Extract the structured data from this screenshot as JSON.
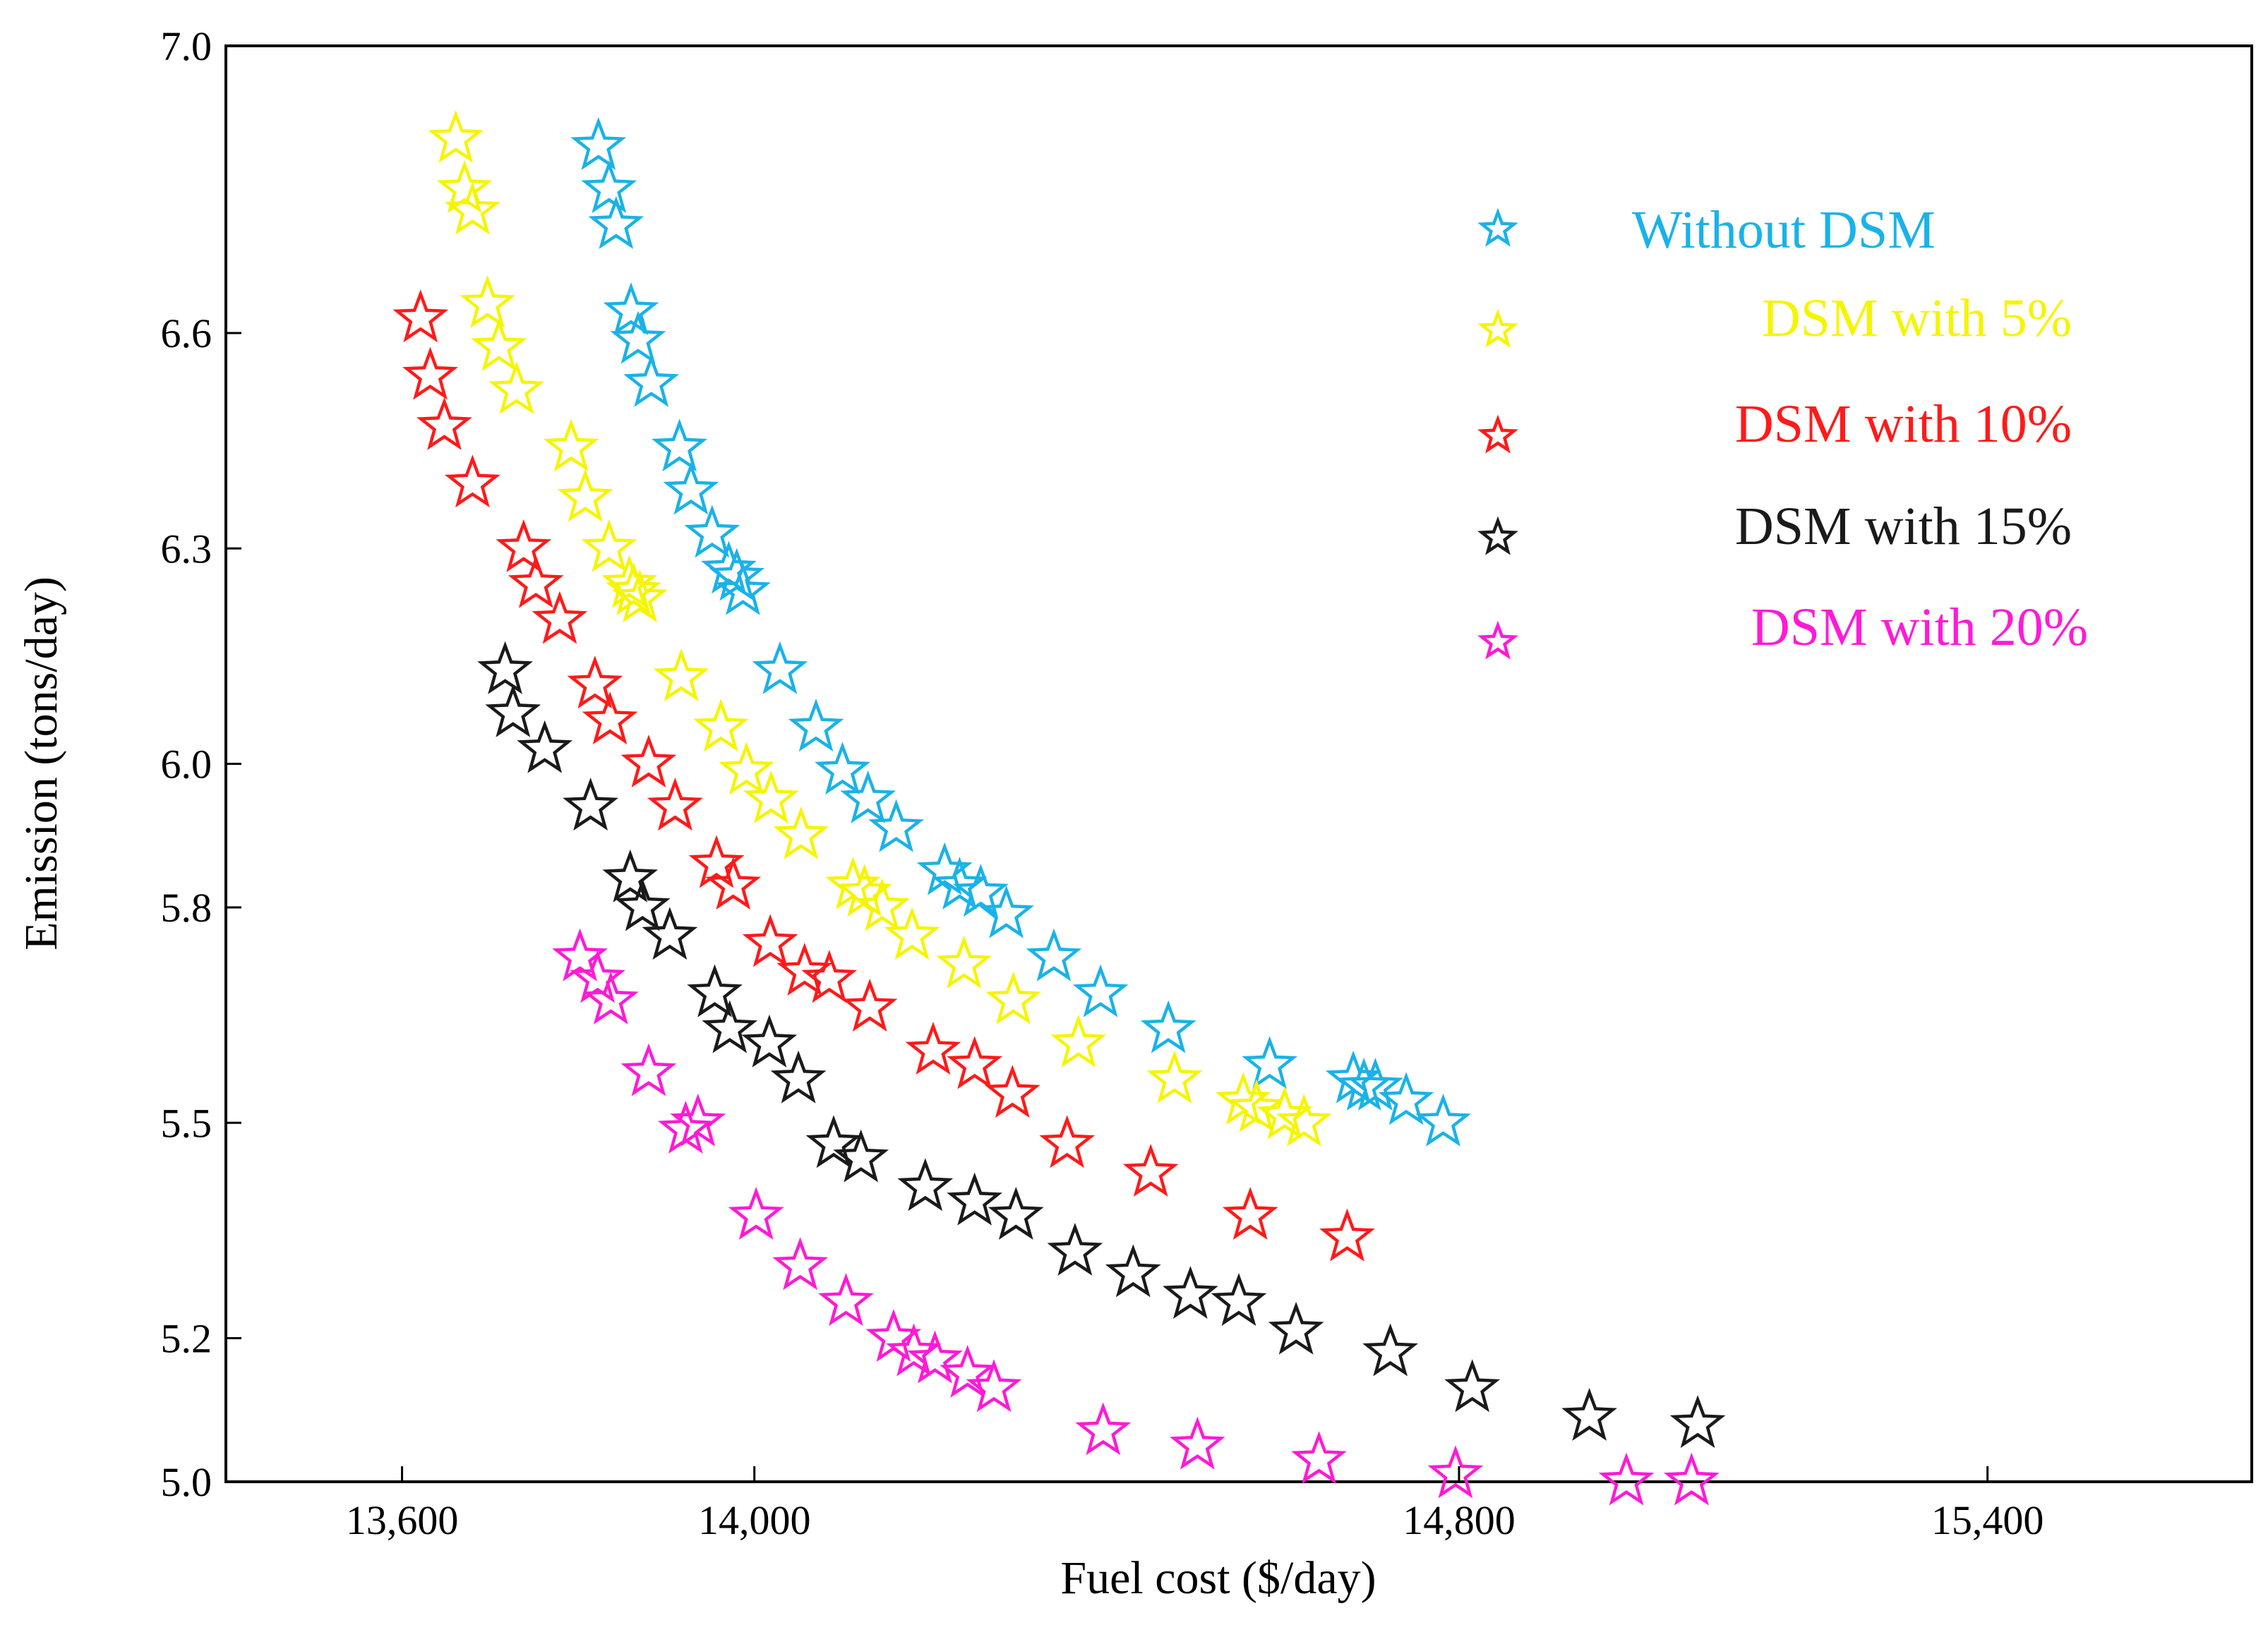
{
  "chart_data": {
    "type": "scatter",
    "xlabel": "Fuel cost ($/day)",
    "ylabel": "Emission (tons/day)",
    "xlim": [
      13400,
      15700
    ],
    "ylim": [
      5.0,
      7.0
    ],
    "x_tick_labels": [
      {
        "value": 13600,
        "label": "13,600"
      },
      {
        "value": 14000,
        "label": "14,000"
      },
      {
        "value": 14800,
        "label": "14,800"
      },
      {
        "value": 15400,
        "label": "15,400"
      }
    ],
    "y_tick_labels": [
      {
        "value": 5.0,
        "label": "5.0"
      },
      {
        "value": 5.2,
        "label": "5.2"
      },
      {
        "value": 5.5,
        "label": "5.5"
      },
      {
        "value": 5.8,
        "label": "5.8"
      },
      {
        "value": 6.0,
        "label": "6.0"
      },
      {
        "value": 6.3,
        "label": "6.3"
      },
      {
        "value": 6.6,
        "label": "6.6"
      },
      {
        "value": 7.0,
        "label": "7.0"
      }
    ],
    "legend_position": "top-right",
    "marker": "star-icon",
    "series": [
      {
        "name": "Without DSM",
        "color": "#1ab2e8",
        "points": [
          [
            13823,
            6.86
          ],
          [
            13835,
            6.8
          ],
          [
            13843,
            6.75
          ],
          [
            13860,
            6.63
          ],
          [
            13868,
            6.59
          ],
          [
            13883,
            6.53
          ],
          [
            13915,
            6.44
          ],
          [
            13928,
            6.38
          ],
          [
            13952,
            6.32
          ],
          [
            13971,
            6.27
          ],
          [
            13980,
            6.26
          ],
          [
            13987,
            6.24
          ],
          [
            14029,
            6.13
          ],
          [
            14070,
            6.05
          ],
          [
            14100,
            5.99
          ],
          [
            14129,
            5.95
          ],
          [
            14161,
            5.91
          ],
          [
            14216,
            5.85
          ],
          [
            14233,
            5.83
          ],
          [
            14257,
            5.82
          ],
          [
            14286,
            5.79
          ],
          [
            14340,
            5.73
          ],
          [
            14393,
            5.68
          ],
          [
            14470,
            5.63
          ],
          [
            14585,
            5.58
          ],
          [
            14680,
            5.56
          ],
          [
            14692,
            5.55
          ],
          [
            14705,
            5.55
          ],
          [
            14740,
            5.53
          ],
          [
            14782,
            5.5
          ]
        ]
      },
      {
        "name": "DSM with 5%",
        "color": "#f5f500",
        "points": [
          [
            13661,
            6.87
          ],
          [
            13671,
            6.8
          ],
          [
            13680,
            6.77
          ],
          [
            13697,
            6.64
          ],
          [
            13710,
            6.58
          ],
          [
            13730,
            6.52
          ],
          [
            13792,
            6.44
          ],
          [
            13808,
            6.37
          ],
          [
            13835,
            6.3
          ],
          [
            13858,
            6.25
          ],
          [
            13863,
            6.24
          ],
          [
            13870,
            6.23
          ],
          [
            13917,
            6.12
          ],
          [
            13962,
            6.05
          ],
          [
            13991,
            5.99
          ],
          [
            14019,
            5.95
          ],
          [
            14053,
            5.9
          ],
          [
            14112,
            5.83
          ],
          [
            14125,
            5.82
          ],
          [
            14145,
            5.8
          ],
          [
            14179,
            5.76
          ],
          [
            14238,
            5.72
          ],
          [
            14294,
            5.67
          ],
          [
            14368,
            5.61
          ],
          [
            14477,
            5.56
          ],
          [
            14555,
            5.53
          ],
          [
            14570,
            5.52
          ],
          [
            14602,
            5.51
          ],
          [
            14624,
            5.5
          ]
        ]
      },
      {
        "name": "DSM with 10%",
        "color": "#ff1a1a",
        "points": [
          [
            13621,
            6.62
          ],
          [
            13632,
            6.54
          ],
          [
            13648,
            6.47
          ],
          [
            13680,
            6.39
          ],
          [
            13738,
            6.3
          ],
          [
            13752,
            6.25
          ],
          [
            13779,
            6.2
          ],
          [
            13819,
            6.11
          ],
          [
            13836,
            6.06
          ],
          [
            13880,
            6.0
          ],
          [
            13910,
            5.94
          ],
          [
            13957,
            5.86
          ],
          [
            13976,
            5.83
          ],
          [
            14018,
            5.75
          ],
          [
            14057,
            5.71
          ],
          [
            14085,
            5.7
          ],
          [
            14131,
            5.66
          ],
          [
            14203,
            5.6
          ],
          [
            14250,
            5.58
          ],
          [
            14293,
            5.54
          ],
          [
            14355,
            5.47
          ],
          [
            14450,
            5.43
          ],
          [
            14563,
            5.37
          ],
          [
            14673,
            5.34
          ]
        ]
      },
      {
        "name": "DSM with 15%",
        "color": "#1a1a1a",
        "points": [
          [
            13717,
            6.13
          ],
          [
            13726,
            6.07
          ],
          [
            13762,
            6.02
          ],
          [
            13814,
            5.94
          ],
          [
            13859,
            5.84
          ],
          [
            13873,
            5.8
          ],
          [
            13904,
            5.76
          ],
          [
            13955,
            5.68
          ],
          [
            13972,
            5.63
          ],
          [
            14017,
            5.61
          ],
          [
            14050,
            5.56
          ],
          [
            14090,
            5.47
          ],
          [
            14121,
            5.45
          ],
          [
            14194,
            5.41
          ],
          [
            14250,
            5.39
          ],
          [
            14297,
            5.37
          ],
          [
            14364,
            5.32
          ],
          [
            14430,
            5.29
          ],
          [
            14495,
            5.26
          ],
          [
            14550,
            5.25
          ],
          [
            14615,
            5.21
          ],
          [
            14722,
            5.18
          ],
          [
            14815,
            5.13
          ],
          [
            14948,
            5.09
          ],
          [
            15071,
            5.08
          ]
        ]
      },
      {
        "name": "DSM with 20%",
        "color": "#ff1ad6",
        "points": [
          [
            13802,
            5.73
          ],
          [
            13822,
            5.7
          ],
          [
            13837,
            5.67
          ],
          [
            13880,
            5.57
          ],
          [
            13922,
            5.49
          ],
          [
            13936,
            5.5
          ],
          [
            14002,
            5.37
          ],
          [
            14052,
            5.3
          ],
          [
            14104,
            5.25
          ],
          [
            14158,
            5.2
          ],
          [
            14181,
            5.18
          ],
          [
            14205,
            5.17
          ],
          [
            14242,
            5.15
          ],
          [
            14272,
            5.13
          ],
          [
            14396,
            5.07
          ],
          [
            14503,
            5.05
          ],
          [
            14641,
            5.03
          ],
          [
            14796,
            5.01
          ],
          [
            14990,
            5.0
          ],
          [
            15064,
            5.0
          ]
        ]
      }
    ]
  }
}
